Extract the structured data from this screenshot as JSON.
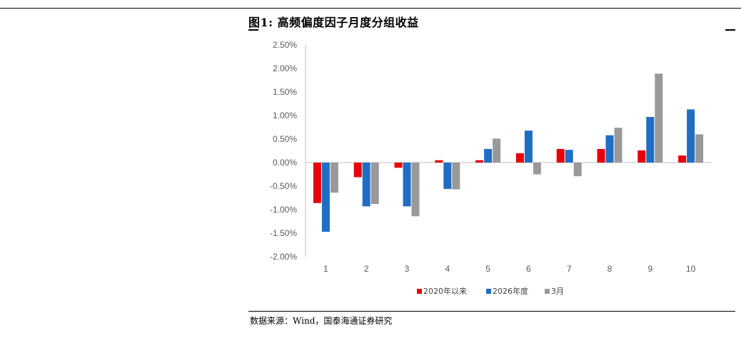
{
  "figure": {
    "title": "图1:  高频偏度因子月度分组收益",
    "source": "数据来源：Wind，国泰海通证券研究"
  },
  "colors": {
    "series_2020": "#e8000b",
    "series_2026": "#1f6ec4",
    "series_mar": "#999999"
  },
  "chart_data": {
    "type": "bar",
    "categories": [
      "1",
      "2",
      "3",
      "4",
      "5",
      "6",
      "7",
      "8",
      "9",
      "10"
    ],
    "series": [
      {
        "name": "2020年以来",
        "values": [
          -0.86,
          -0.31,
          -0.11,
          0.05,
          0.05,
          0.2,
          0.29,
          0.29,
          0.26,
          0.15
        ]
      },
      {
        "name": "2026年度",
        "values": [
          -1.47,
          -0.93,
          -0.93,
          -0.56,
          0.29,
          0.68,
          0.27,
          0.58,
          0.97,
          1.13
        ]
      },
      {
        "name": "3月",
        "values": [
          -0.64,
          -0.88,
          -1.14,
          -0.57,
          0.51,
          -0.25,
          -0.29,
          0.74,
          1.89,
          0.6
        ]
      }
    ],
    "yticks": [
      "2.50%",
      "2.00%",
      "1.50%",
      "1.00%",
      "0.50%",
      "0.00%",
      "-0.50%",
      "-1.00%",
      "-1.50%",
      "-2.00%"
    ],
    "ylim": [
      -2.0,
      2.5
    ],
    "ylabel": "",
    "xlabel": "",
    "grid": false,
    "legend_position": "bottom-center"
  }
}
